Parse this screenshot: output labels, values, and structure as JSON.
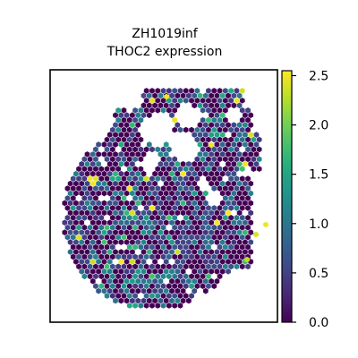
{
  "chart_data": {
    "type": "scatter",
    "title": "ZH1019inf",
    "subtitle": "THOC2 expression",
    "xlabel": "",
    "ylabel": "",
    "color_scale": {
      "name": "viridis",
      "min": 0.0,
      "max": 2.55,
      "ticks": [
        0.0,
        0.5,
        1.0,
        1.5,
        2.0,
        2.5
      ],
      "tick_labels": [
        "0.0",
        "0.5",
        "1.0",
        "1.5",
        "2.0",
        "2.5"
      ]
    },
    "spot_shape": "hexagon",
    "spot_value_distribution": {
      "zero": 0.48,
      "low_0_5": 0.3,
      "mid_1_0": 0.14,
      "mid_1_5": 0.06,
      "high_2_5": 0.02
    },
    "axes_visible": false,
    "grid": false,
    "legend": "colorbar-right"
  }
}
